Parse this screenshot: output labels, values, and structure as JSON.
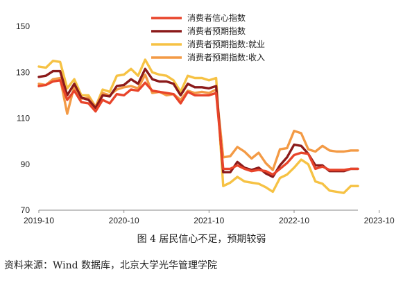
{
  "caption": "图 4 居民信心不足，预期较弱",
  "source": "资料来源：Wind 数据库，北京大学光华管理学院",
  "chart_data": {
    "type": "line",
    "xlabel": "",
    "ylabel": "",
    "ylim": [
      70,
      150
    ],
    "yticks": [
      70,
      90,
      110,
      130,
      150
    ],
    "xticks": [
      "2019-10",
      "2020-10",
      "2021-10",
      "2022-10",
      "2023-10"
    ],
    "x_start": "2019-10",
    "x_end": "2023-10",
    "grid": false,
    "legend_position": "top",
    "series": [
      {
        "name": "消费者信心指数",
        "color": "#e8442a",
        "values": [
          124.0,
          124.5,
          126.0,
          126.5,
          118.0,
          122.0,
          117.0,
          116.5,
          113.0,
          118.0,
          116.5,
          120.5,
          120.0,
          122.5,
          122.0,
          125.5,
          122.0,
          121.5,
          121.0,
          120.5,
          116.5,
          121.5,
          120.0,
          120.0,
          120.0,
          121.0,
          88.0,
          88.0,
          89.5,
          88.0,
          87.0,
          87.5,
          87.0,
          85.5,
          88.0,
          90.5,
          94.0,
          95.0,
          94.5,
          88.0,
          89.0,
          87.5,
          87.5,
          87.5,
          88.0,
          88.0
        ]
      },
      {
        "name": "消费者预期指数",
        "color": "#8b1a1a",
        "values": [
          128.0,
          128.5,
          130.5,
          130.5,
          120.0,
          125.0,
          119.0,
          118.0,
          114.5,
          120.0,
          119.5,
          124.0,
          124.5,
          127.0,
          125.0,
          131.5,
          127.0,
          126.0,
          126.0,
          125.0,
          120.0,
          125.0,
          123.5,
          123.5,
          123.0,
          124.0,
          86.5,
          86.5,
          91.0,
          88.5,
          87.5,
          88.5,
          86.0,
          84.5,
          89.5,
          93.0,
          98.5,
          98.0,
          94.5,
          89.5,
          89.5,
          87.0,
          87.0,
          87.0,
          88.0,
          88.0
        ]
      },
      {
        "name": "消费者预期指数:就业",
        "color": "#f6c244",
        "values": [
          132.5,
          132.0,
          135.0,
          134.5,
          123.0,
          127.0,
          120.0,
          120.0,
          115.0,
          122.5,
          121.5,
          128.5,
          129.0,
          131.5,
          128.5,
          135.5,
          130.0,
          129.0,
          128.5,
          126.5,
          121.5,
          128.5,
          127.5,
          127.5,
          126.5,
          127.5,
          80.5,
          82.0,
          84.5,
          82.5,
          82.0,
          81.5,
          80.0,
          78.0,
          84.0,
          85.5,
          88.5,
          92.0,
          90.0,
          82.5,
          81.5,
          78.5,
          78.0,
          77.5,
          80.5,
          80.5
        ]
      },
      {
        "name": "消费者预期指数:收入",
        "color": "#f39a45",
        "values": [
          125.0,
          124.5,
          127.0,
          127.5,
          112.0,
          124.0,
          118.5,
          119.0,
          115.0,
          121.0,
          120.0,
          122.5,
          123.5,
          124.0,
          123.0,
          129.0,
          121.0,
          121.5,
          120.0,
          120.5,
          118.0,
          122.0,
          121.0,
          121.5,
          121.0,
          122.5,
          93.0,
          93.5,
          97.5,
          95.5,
          92.5,
          95.0,
          90.5,
          87.5,
          96.5,
          97.0,
          104.5,
          103.5,
          96.5,
          95.5,
          98.0,
          96.0,
          95.5,
          95.5,
          96.0,
          96.0
        ]
      }
    ]
  }
}
